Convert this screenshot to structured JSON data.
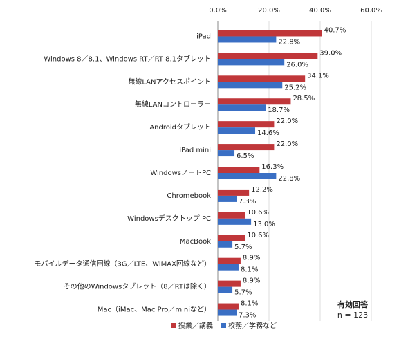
{
  "chart_data": {
    "type": "hbar",
    "categories": [
      "iPad",
      "Windows 8／8.1、Windows RT／RT 8.1タブレット",
      "無線LANアクセスポイント",
      "無線LANコントローラー",
      "Androidタブレット",
      "iPad mini",
      "WindowsノートPC",
      "Chromebook",
      "Windowsデスクトップ PC",
      "MacBook",
      "モバイルデータ通信回線（3G／LTE、WiMAX回線など）",
      "その他のWindowsタブレット（8／RTは除く）",
      "Mac（iMac、Mac Pro／miniなど）"
    ],
    "series": [
      {
        "name": "授業／講義",
        "color": "#c0373a",
        "values": [
          40.7,
          39.0,
          34.1,
          28.5,
          22.0,
          22.0,
          16.3,
          12.2,
          10.6,
          10.6,
          8.9,
          8.9,
          8.1
        ],
        "value_labels": [
          "40.7%",
          "39.0%",
          "34.1%",
          "28.5%",
          "22.0%",
          "22.0%",
          "16.3%",
          "12.2%",
          "10.6%",
          "10.6%",
          "8.9%",
          "8.9%",
          "8.1%"
        ]
      },
      {
        "name": "校務／学務など",
        "color": "#3a6fc4",
        "values": [
          22.8,
          26.0,
          25.2,
          18.7,
          14.6,
          6.5,
          22.8,
          7.3,
          13.0,
          5.7,
          8.1,
          5.7,
          7.3
        ],
        "value_labels": [
          "22.8%",
          "26.0%",
          "25.2%",
          "18.7%",
          "14.6%",
          "6.5%",
          "22.8%",
          "7.3%",
          "13.0%",
          "5.7%",
          "8.1%",
          "5.7%",
          "7.3%"
        ]
      }
    ],
    "xlim": [
      0,
      60
    ],
    "xticks": [
      {
        "value": 0,
        "label": "0.0%"
      },
      {
        "value": 20,
        "label": "20.0%"
      },
      {
        "value": 40,
        "label": "40.0%"
      },
      {
        "value": 60,
        "label": "60.0%"
      }
    ],
    "grid": true,
    "annotations": [
      "有効回答",
      "n = 123"
    ]
  }
}
